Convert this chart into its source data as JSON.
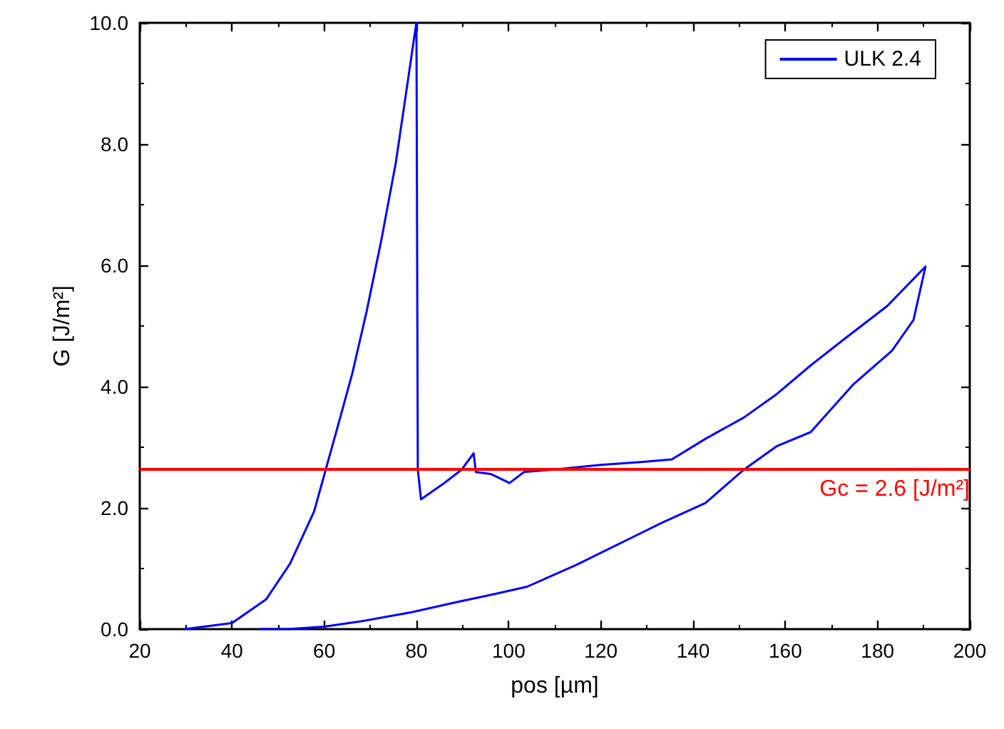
{
  "chart_data": {
    "type": "line",
    "xlabel": "pos [µm]",
    "ylabel": "G [J/m²]",
    "xlim": [
      20,
      200
    ],
    "xticks": [
      20,
      40,
      60,
      80,
      100,
      120,
      140,
      160,
      180,
      200
    ],
    "ylim": [
      0,
      10
    ],
    "yticks": [
      {
        "value": 0,
        "label": "0.0"
      },
      {
        "value": 2,
        "label": "2.0"
      },
      {
        "value": 4,
        "label": "4.0"
      },
      {
        "value": 6,
        "label": "6.0"
      },
      {
        "value": 8,
        "label": "8.0"
      },
      {
        "value": 10,
        "label": "10.0"
      }
    ],
    "grid": false,
    "legend": "top right",
    "marker": "none",
    "line_style": "solid",
    "series": [
      {
        "name": "ULK 2.4",
        "color": "#0000ff",
        "x": [
          29.7,
          40,
          47.4,
          52.6,
          57.8,
          60.4,
          63,
          66.1,
          69.2,
          72.4,
          75.5,
          78.1,
          79.9,
          80,
          80.3,
          81,
          85.7,
          89.8,
          92.4,
          92.9,
          96.1,
          100.2,
          103.3,
          109.5,
          119.9,
          129.2,
          135.4,
          142.7,
          151,
          158.2,
          165.5,
          172.7,
          182.1,
          190.4,
          187.8,
          183.1,
          174.8,
          165.5,
          158.2,
          151,
          142.7,
          133.4,
          125.1,
          114.7,
          104,
          97,
          89,
          79,
          68,
          60,
          52,
          46
        ],
        "values": [
          0,
          0.1,
          0.49,
          1.08,
          1.94,
          2.65,
          3.36,
          4.22,
          5.24,
          6.42,
          7.68,
          9.02,
          9.96,
          10,
          2.63,
          2.14,
          2.39,
          2.63,
          2.9,
          2.59,
          2.56,
          2.41,
          2.59,
          2.63,
          2.71,
          2.76,
          2.8,
          3.14,
          3.49,
          3.88,
          4.35,
          4.78,
          5.33,
          5.98,
          5.1,
          4.59,
          4.04,
          3.25,
          3.02,
          2.63,
          2.08,
          1.76,
          1.45,
          1.06,
          0.7,
          0.58,
          0.45,
          0.28,
          0.13,
          0.04,
          0,
          0
        ]
      }
    ],
    "ref_lines": [
      {
        "axis": "y",
        "value": 2.63,
        "label": "Gc = 2.6 [J/m²]",
        "color": "#ff0000"
      }
    ]
  }
}
